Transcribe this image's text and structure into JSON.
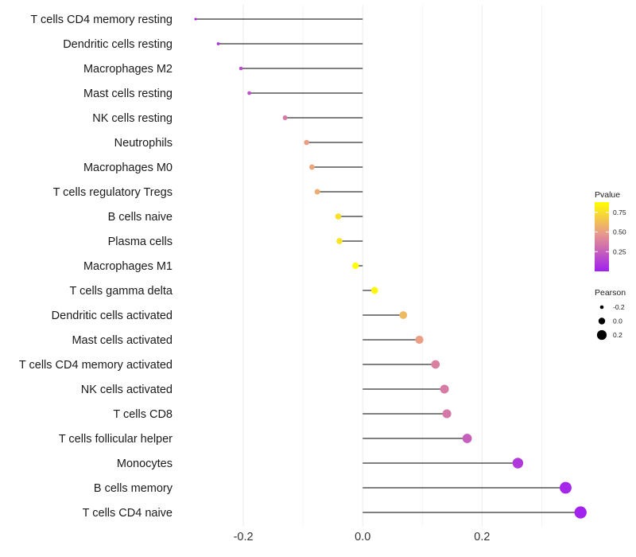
{
  "chart_data": {
    "type": "lollipop",
    "title": "",
    "xlabel": "",
    "ylabel": "",
    "xlim": [
      -0.3,
      0.37
    ],
    "x_ticks": [
      -0.2,
      0.0,
      0.2
    ],
    "x_tick_labels": [
      "-0.2",
      "0.0",
      "0.2"
    ],
    "grid": true,
    "legend_position": "right",
    "size_legend": {
      "title": "Pearson",
      "values": [
        -0.2,
        0.0,
        0.2
      ],
      "labels": [
        "-0.2",
        "0.0",
        "0.2"
      ]
    },
    "color_legend": {
      "title": "Pvalue",
      "ticks": [
        0.75,
        0.5,
        0.25
      ],
      "tick_labels": [
        "0.75",
        "0.50",
        "0.25"
      ],
      "range": [
        0.0,
        0.88
      ],
      "low_color": "#a020f0",
      "mid_color": "#e99a8a",
      "high_color": "#ffff00"
    },
    "points": [
      {
        "label": "T cells CD4 memory resting",
        "pearson": -0.28,
        "pvalue": 0.02
      },
      {
        "label": "Dendritic cells resting",
        "pearson": -0.242,
        "pvalue": 0.08
      },
      {
        "label": "Macrophages M2",
        "pearson": -0.204,
        "pvalue": 0.16
      },
      {
        "label": "Mast cells resting",
        "pearson": -0.19,
        "pvalue": 0.2
      },
      {
        "label": "NK cells resting",
        "pearson": -0.13,
        "pvalue": 0.35
      },
      {
        "label": "Neutrophils",
        "pearson": -0.094,
        "pvalue": 0.5
      },
      {
        "label": "Macrophages M0",
        "pearson": -0.085,
        "pvalue": 0.53
      },
      {
        "label": "T cells regulatory  Tregs ",
        "pearson": -0.076,
        "pvalue": 0.56
      },
      {
        "label": "B cells naive",
        "pearson": -0.041,
        "pvalue": 0.76
      },
      {
        "label": "Plasma cells",
        "pearson": -0.039,
        "pvalue": 0.77
      },
      {
        "label": "Macrophages M1",
        "pearson": -0.012,
        "pvalue": 0.88
      },
      {
        "label": "T cells gamma delta",
        "pearson": 0.02,
        "pvalue": 0.85
      },
      {
        "label": "Dendritic cells activated",
        "pearson": 0.068,
        "pvalue": 0.6
      },
      {
        "label": "Mast cells activated",
        "pearson": 0.095,
        "pvalue": 0.5
      },
      {
        "label": "T cells CD4 memory activated",
        "pearson": 0.122,
        "pvalue": 0.38
      },
      {
        "label": "NK cells activated",
        "pearson": 0.137,
        "pvalue": 0.36
      },
      {
        "label": "T cells CD8",
        "pearson": 0.141,
        "pvalue": 0.35
      },
      {
        "label": "T cells follicular helper",
        "pearson": 0.175,
        "pvalue": 0.25
      },
      {
        "label": "Monocytes",
        "pearson": 0.26,
        "pvalue": 0.1
      },
      {
        "label": "B cells memory",
        "pearson": 0.34,
        "pvalue": 0.03
      },
      {
        "label": "T cells CD4 naive",
        "pearson": 0.365,
        "pvalue": 0.01
      }
    ]
  }
}
